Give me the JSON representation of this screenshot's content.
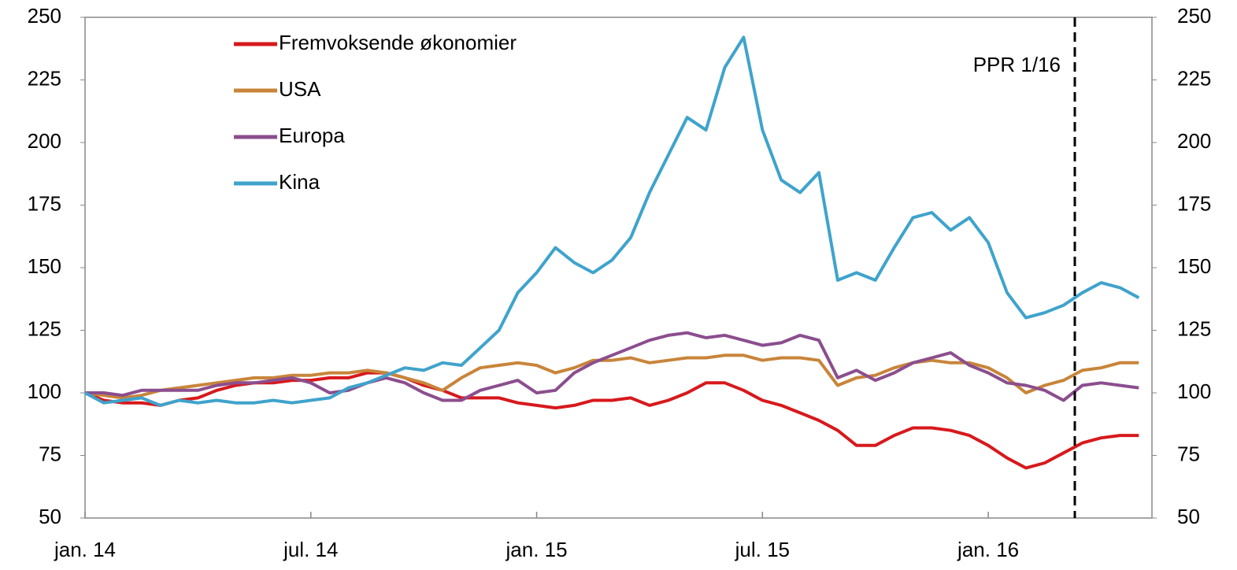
{
  "chart_data": {
    "type": "line",
    "categories": [
      "jan. 14",
      null,
      null,
      null,
      null,
      null,
      null,
      null,
      null,
      null,
      null,
      null,
      "jul. 14",
      null,
      null,
      null,
      null,
      null,
      null,
      null,
      null,
      null,
      null,
      null,
      "jan. 15",
      null,
      null,
      null,
      null,
      null,
      null,
      null,
      null,
      null,
      null,
      null,
      "jul. 15",
      null,
      null,
      null,
      null,
      null,
      null,
      null,
      null,
      null,
      null,
      null,
      "jan. 16",
      null,
      null,
      null,
      null,
      null,
      null,
      null,
      null
    ],
    "series": [
      {
        "name": "Fremvoksende økonomier",
        "color": "#d7191c",
        "values": [
          100,
          97,
          96,
          96,
          95,
          97,
          98,
          101,
          103,
          104,
          104,
          105,
          105,
          106,
          106,
          108,
          108,
          106,
          103,
          101,
          98,
          98,
          98,
          96,
          95,
          94,
          95,
          97,
          97,
          98,
          95,
          97,
          100,
          104,
          104,
          101,
          97,
          95,
          92,
          89,
          85,
          79,
          79,
          83,
          86,
          86,
          85,
          83,
          79,
          74,
          70,
          72,
          76,
          80,
          82,
          83,
          83
        ]
      },
      {
        "name": "USA",
        "color": "#c8853a",
        "values": [
          100,
          99,
          98,
          99,
          101,
          102,
          103,
          104,
          105,
          106,
          106,
          107,
          107,
          108,
          108,
          109,
          108,
          106,
          104,
          101,
          106,
          110,
          111,
          112,
          111,
          108,
          110,
          113,
          113,
          114,
          112,
          113,
          114,
          114,
          115,
          115,
          113,
          114,
          114,
          113,
          103,
          106,
          107,
          110,
          112,
          113,
          112,
          112,
          110,
          106,
          100,
          103,
          105,
          109,
          110,
          112,
          112
        ]
      },
      {
        "name": "Europa",
        "color": "#8b4e8e",
        "values": [
          100,
          100,
          99,
          101,
          101,
          101,
          101,
          103,
          104,
          104,
          105,
          106,
          104,
          100,
          101,
          104,
          106,
          104,
          100,
          97,
          97,
          101,
          103,
          105,
          100,
          101,
          108,
          112,
          115,
          118,
          121,
          123,
          124,
          122,
          123,
          121,
          119,
          120,
          123,
          121,
          106,
          109,
          105,
          108,
          112,
          114,
          116,
          111,
          108,
          104,
          103,
          101,
          97,
          103,
          104,
          103,
          102
        ]
      },
      {
        "name": "Kina",
        "color": "#3fa3cc",
        "values": [
          100,
          96,
          97,
          98,
          95,
          97,
          96,
          97,
          96,
          96,
          97,
          96,
          97,
          98,
          102,
          104,
          107,
          110,
          109,
          112,
          111,
          118,
          125,
          140,
          148,
          158,
          152,
          148,
          153,
          162,
          180,
          195,
          210,
          205,
          230,
          242,
          205,
          185,
          180,
          188,
          145,
          148,
          145,
          158,
          170,
          172,
          165,
          170,
          160,
          140,
          130,
          132,
          135,
          140,
          144,
          142,
          138
        ]
      }
    ],
    "ylim": [
      50,
      250
    ],
    "yticks": [
      50,
      75,
      100,
      125,
      150,
      175,
      200,
      225,
      250
    ],
    "vline": {
      "x": 52.6,
      "label": "PPR 1/16"
    }
  }
}
